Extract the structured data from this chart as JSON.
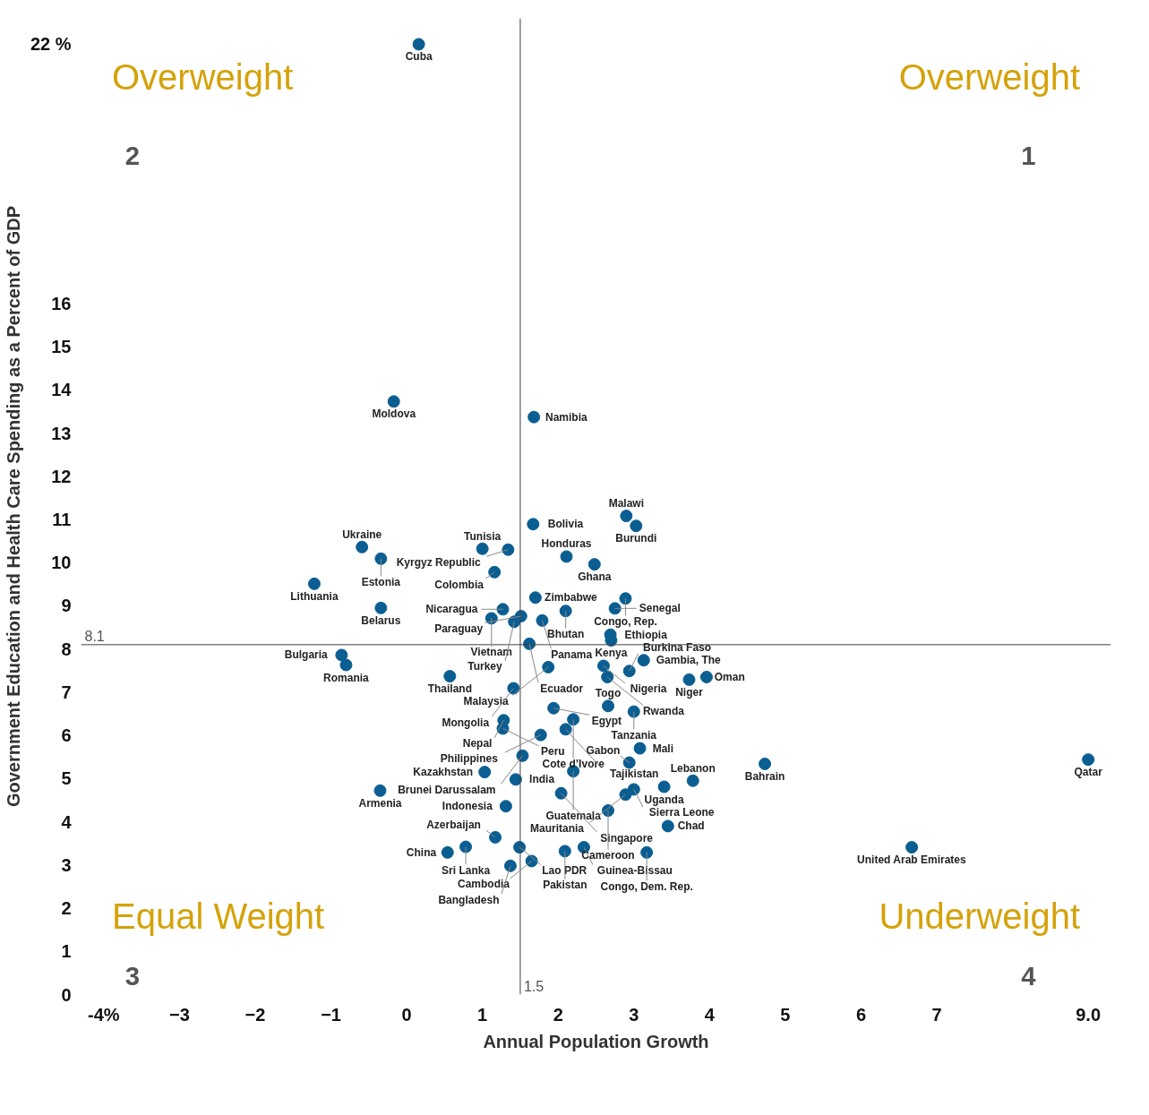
{
  "chart_data": {
    "type": "scatter",
    "xlabel": "Annual Population Growth",
    "ylabel": "Government Education and Health Care Spending as a Percent of GDP",
    "xlim": [
      -4.3,
      9.3
    ],
    "ylim": [
      0,
      22.6
    ],
    "xticks": [
      {
        "value": -4,
        "label": "-4%"
      },
      -3,
      -2,
      -1,
      0,
      1,
      2,
      3,
      4,
      5,
      6,
      7,
      {
        "value": 9,
        "label": "9.0"
      }
    ],
    "yticks": [
      0,
      1,
      2,
      3,
      4,
      5,
      6,
      7,
      8,
      9,
      10,
      11,
      12,
      13,
      14,
      15,
      16,
      {
        "value": 22,
        "label": "22 %"
      }
    ],
    "marker": "circle",
    "series": [
      {
        "color": "#0b5e91",
        "x": [
          0.16,
          -0.17,
          1.68,
          2.9,
          3.03,
          1.67,
          1.34,
          1.0,
          2.11,
          2.48,
          -0.59,
          -0.34,
          -1.22,
          1.16,
          1.7,
          2.89,
          2.75,
          -0.34,
          1.27,
          1.51,
          2.1,
          1.12,
          1.79,
          1.42,
          2.69,
          2.7,
          1.62,
          -0.86,
          -0.8,
          1.87,
          2.6,
          2.65,
          3.13,
          2.94,
          3.96,
          3.73,
          0.57,
          1.41,
          1.94,
          2.66,
          3.0,
          1.28,
          1.27,
          2.2,
          2.1,
          1.77,
          3.08,
          1.53,
          2.94,
          2.2,
          1.03,
          1.44,
          2.04,
          3.78,
          4.73,
          3.4,
          3.0,
          2.89,
          1.31,
          2.66,
          -0.35,
          3.45,
          1.17,
          0.78,
          0.54,
          1.49,
          2.09,
          2.34,
          3.17,
          1.65,
          1.37,
          6.67,
          9.0
        ],
        "values": [
          22,
          13.73,
          13.37,
          11.08,
          10.85,
          10.89,
          10.3,
          10.32,
          10.14,
          9.96,
          10.36,
          10.09,
          9.51,
          9.78,
          9.19,
          9.17,
          8.94,
          8.95,
          8.92,
          8.76,
          8.88,
          8.71,
          8.66,
          8.63,
          8.33,
          8.2,
          8.12,
          7.86,
          7.63,
          7.58,
          7.61,
          7.35,
          7.74,
          7.49,
          7.35,
          7.29,
          7.37,
          7.09,
          6.63,
          6.68,
          6.55,
          6.35,
          6.16,
          6.37,
          6.14,
          6.01,
          5.7,
          5.53,
          5.37,
          5.17,
          5.15,
          4.98,
          4.66,
          4.95,
          5.34,
          4.81,
          4.75,
          4.63,
          4.36,
          4.26,
          4.72,
          3.9,
          3.64,
          3.42,
          3.29,
          3.41,
          3.32,
          3.41,
          3.29,
          3.09,
          2.98,
          3.41,
          5.44
        ]
      }
    ],
    "ref_lines": [
      {
        "axis": "y",
        "value": 8.1,
        "label": "8.1",
        "color": "#404040"
      },
      {
        "axis": "x",
        "value": 1.5,
        "label": "1.5",
        "color": "#404040"
      }
    ],
    "annotations": [
      "Overweight",
      "2",
      "Overweight",
      "1",
      "Equal Weight",
      "3",
      "Underweight",
      "4",
      {
        "text": "Cuba",
        "x": 0.16,
        "y": 22
      },
      {
        "text": "Moldova",
        "x": -0.17,
        "y": 13.73
      },
      {
        "text": "Namibia",
        "x": 1.68,
        "y": 13.37
      },
      {
        "text": "Malawi",
        "x": 2.9,
        "y": 11.08
      },
      {
        "text": "Burundi",
        "x": 3.03,
        "y": 10.85
      },
      {
        "text": "Bolivia",
        "x": 1.67,
        "y": 10.89
      },
      {
        "text": "Kyrgyz Republic",
        "x": 1.34,
        "y": 10.3
      },
      {
        "text": "Tunisia",
        "x": 1.0,
        "y": 10.32
      },
      {
        "text": "Honduras",
        "x": 2.11,
        "y": 10.14
      },
      {
        "text": "Ghana",
        "x": 2.48,
        "y": 9.96
      },
      {
        "text": "Ukraine",
        "x": -0.59,
        "y": 10.36
      },
      {
        "text": "Estonia",
        "x": -0.34,
        "y": 10.09
      },
      {
        "text": "Lithuania",
        "x": -1.22,
        "y": 9.51
      },
      {
        "text": "Colombia",
        "x": 1.16,
        "y": 9.78
      },
      {
        "text": "Zimbabwe",
        "x": 1.7,
        "y": 9.19
      },
      {
        "text": "Congo, Rep.",
        "x": 2.89,
        "y": 9.17
      },
      {
        "text": "Senegal",
        "x": 2.75,
        "y": 8.94
      },
      {
        "text": "Belarus",
        "x": -0.34,
        "y": 8.95
      },
      {
        "text": "Nicaragua",
        "x": 1.27,
        "y": 8.92
      },
      {
        "text": "Paraguay",
        "x": 1.51,
        "y": 8.76
      },
      {
        "text": "Bhutan",
        "x": 2.1,
        "y": 8.88
      },
      {
        "text": "Vietnam",
        "x": 1.12,
        "y": 8.71
      },
      {
        "text": "Panama",
        "x": 1.79,
        "y": 8.66
      },
      {
        "text": "Turkey",
        "x": 1.42,
        "y": 8.63
      },
      {
        "text": "Ethiopia",
        "x": 2.69,
        "y": 8.33
      },
      {
        "text": "Kenya",
        "x": 2.7,
        "y": 8.2
      },
      {
        "text": "Ecuador",
        "x": 1.62,
        "y": 8.12
      },
      {
        "text": "Bulgaria",
        "x": -0.86,
        "y": 7.86
      },
      {
        "text": "Romania",
        "x": -0.8,
        "y": 7.63
      },
      {
        "text": "Malaysia",
        "x": 1.87,
        "y": 7.58
      },
      {
        "text": "Nigeria",
        "x": 2.6,
        "y": 7.61
      },
      {
        "text": "Rwanda",
        "x": 2.65,
        "y": 7.35
      },
      {
        "text": "Gambia, The",
        "x": 3.13,
        "y": 7.74
      },
      {
        "text": "Burkina Faso",
        "x": 2.94,
        "y": 7.49
      },
      {
        "text": "Oman",
        "x": 3.96,
        "y": 7.35
      },
      {
        "text": "Niger",
        "x": 3.73,
        "y": 7.29
      },
      {
        "text": "Thailand",
        "x": 0.57,
        "y": 7.37
      },
      {
        "text": "Mongolia",
        "x": 1.41,
        "y": 7.09
      },
      {
        "text": "Egypt",
        "x": 1.94,
        "y": 6.63
      },
      {
        "text": "Togo",
        "x": 2.66,
        "y": 6.68
      },
      {
        "text": "Tanzania",
        "x": 3.0,
        "y": 6.55
      },
      {
        "text": "Nepal",
        "x": 1.28,
        "y": 6.35
      },
      {
        "text": "Peru",
        "x": 1.27,
        "y": 6.16
      },
      {
        "text": "Cote d’Ivore",
        "x": 2.2,
        "y": 6.37
      },
      {
        "text": "Tajikistan",
        "x": 2.1,
        "y": 6.14
      },
      {
        "text": "Philippines",
        "x": 1.77,
        "y": 6.01
      },
      {
        "text": "Mali",
        "x": 3.08,
        "y": 5.7
      },
      {
        "text": "Brunei Darussalam",
        "x": 1.53,
        "y": 5.53
      },
      {
        "text": "Gabon",
        "x": 2.94,
        "y": 5.37
      },
      {
        "text": "Guatemala",
        "x": 2.2,
        "y": 5.17
      },
      {
        "text": "Kazakhstan",
        "x": 1.03,
        "y": 5.15
      },
      {
        "text": "India",
        "x": 1.44,
        "y": 4.98
      },
      {
        "text": "Singapore",
        "x": 2.04,
        "y": 4.66
      },
      {
        "text": "Lebanon",
        "x": 3.78,
        "y": 4.95
      },
      {
        "text": "Bahrain",
        "x": 4.73,
        "y": 5.34
      },
      {
        "text": "Uganda",
        "x": 3.4,
        "y": 4.81
      },
      {
        "text": "Sierra Leone",
        "x": 3.0,
        "y": 4.75
      },
      {
        "text": "Mauritania",
        "x": 2.89,
        "y": 4.63
      },
      {
        "text": "Indonesia",
        "x": 1.31,
        "y": 4.36
      },
      {
        "text": "Cameroon",
        "x": 2.66,
        "y": 4.26
      },
      {
        "text": "Armenia",
        "x": -0.35,
        "y": 4.72
      },
      {
        "text": "Chad",
        "x": 3.45,
        "y": 3.9
      },
      {
        "text": "Azerbaijan",
        "x": 1.17,
        "y": 3.64
      },
      {
        "text": "Sri Lanka",
        "x": 0.78,
        "y": 3.42
      },
      {
        "text": "China",
        "x": 0.54,
        "y": 3.29
      },
      {
        "text": "Lao PDR",
        "x": 1.49,
        "y": 3.41
      },
      {
        "text": "Pakistan",
        "x": 2.09,
        "y": 3.32
      },
      {
        "text": "Guinea-Bissau",
        "x": 2.34,
        "y": 3.41
      },
      {
        "text": "Congo, Dem. Rep.",
        "x": 3.17,
        "y": 3.29
      },
      {
        "text": "Cambodia",
        "x": 1.65,
        "y": 3.09
      },
      {
        "text": "Bangladesh",
        "x": 1.37,
        "y": 2.98
      },
      {
        "text": "United Arab Emirates",
        "x": 6.67,
        "y": 3.41
      },
      {
        "text": "Qatar",
        "x": 9.0,
        "y": 5.44
      }
    ]
  }
}
